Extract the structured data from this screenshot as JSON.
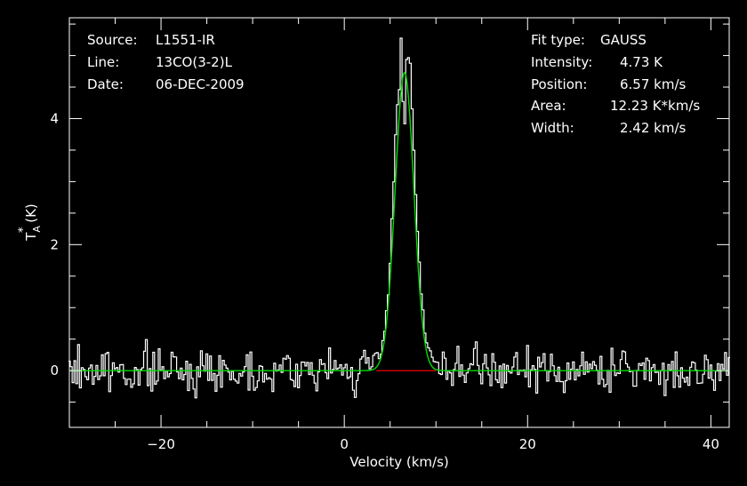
{
  "colors": {
    "background": "#000000",
    "frame": "#ffffff",
    "spectrum": "#ffffff",
    "fit": "#00dd00",
    "baseline": "#dd0000"
  },
  "info_left": {
    "source_label": "Source:",
    "source_value": "L1551-IR",
    "line_label": "Line:",
    "line_value": "13CO(3-2)L",
    "date_label": "Date:",
    "date_value": "06-DEC-2009"
  },
  "info_right": {
    "fit_type_label": "Fit type:",
    "fit_type_value": "GAUSS",
    "intensity_label": "Intensity:",
    "intensity_value": "4.73 K",
    "position_label": "Position:",
    "position_value": "6.57 km/s",
    "area_label": "Area:",
    "area_value": "12.23 K*km/s",
    "width_label": "Width:",
    "width_value": "2.42 km/s"
  },
  "chart_data": {
    "type": "line",
    "xlabel": "Velocity (km/s)",
    "ylabel": "T*A (K)",
    "ylabel_main": "T",
    "ylabel_super": "*",
    "ylabel_sub": "A",
    "ylabel_unit": " (K)",
    "xlim": [
      -30,
      42
    ],
    "ylim": [
      -0.9,
      5.6
    ],
    "xticks": [
      -20,
      0,
      20,
      40
    ],
    "xtick_labels": [
      "−20",
      "0",
      "20",
      "40"
    ],
    "yticks": [
      0,
      2,
      4
    ],
    "ytick_labels": [
      "0",
      "2",
      "4"
    ],
    "noise_rms": 0.17,
    "fit": {
      "amplitude": 4.73,
      "center": 6.57,
      "fwhm": 2.42
    },
    "baseline_range": [
      3.5,
      10.0
    ],
    "spectrum_peak": [
      [
        3.0,
        0.05
      ],
      [
        3.4,
        0.35
      ],
      [
        3.8,
        0.2
      ],
      [
        4.2,
        0.45
      ],
      [
        4.6,
        0.9
      ],
      [
        5.0,
        1.7
      ],
      [
        5.4,
        3.0
      ],
      [
        5.7,
        4.2
      ],
      [
        6.0,
        4.5
      ],
      [
        6.2,
        5.25
      ],
      [
        6.4,
        4.3
      ],
      [
        6.55,
        3.3
      ],
      [
        6.7,
        5.1
      ],
      [
        6.9,
        4.85
      ],
      [
        7.1,
        5.1
      ],
      [
        7.4,
        4.3
      ],
      [
        7.7,
        3.2
      ],
      [
        8.0,
        2.2
      ],
      [
        8.4,
        1.2
      ],
      [
        8.8,
        0.6
      ],
      [
        9.2,
        0.35
      ],
      [
        9.6,
        0.2
      ],
      [
        10.0,
        0.05
      ]
    ]
  }
}
